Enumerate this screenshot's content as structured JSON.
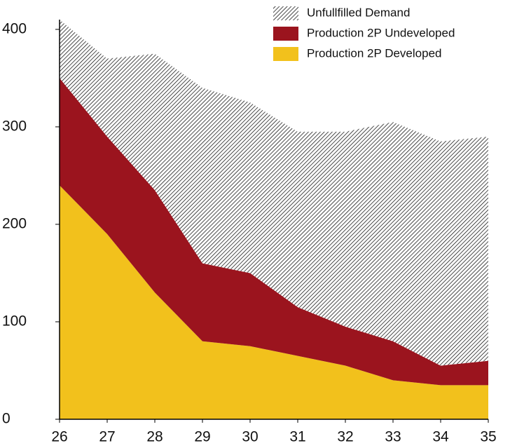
{
  "chart_data": {
    "type": "stacked-area",
    "x": [
      26,
      27,
      28,
      29,
      30,
      31,
      32,
      33,
      34,
      35
    ],
    "xlim": [
      26,
      35
    ],
    "xticks": [
      26,
      27,
      28,
      29,
      30,
      31,
      32,
      33,
      34,
      35
    ],
    "ylim": [
      0,
      410
    ],
    "yticks": [
      0,
      100,
      200,
      300,
      400
    ],
    "grid": false,
    "legend": "top-right",
    "series": [
      {
        "name": "Production 2P Developed",
        "color": "#f2c11c",
        "values": [
          240,
          190,
          130,
          80,
          75,
          65,
          55,
          40,
          35,
          35
        ]
      },
      {
        "name": "Production 2P Undeveloped",
        "color": "#9b141e",
        "values": [
          110,
          100,
          105,
          80,
          75,
          50,
          40,
          40,
          20,
          25
        ]
      },
      {
        "name": "Unfullfilled Demand",
        "color": "#000000",
        "hatch": true,
        "values": [
          60,
          80,
          140,
          180,
          175,
          180,
          200,
          225,
          230,
          230
        ]
      }
    ]
  }
}
